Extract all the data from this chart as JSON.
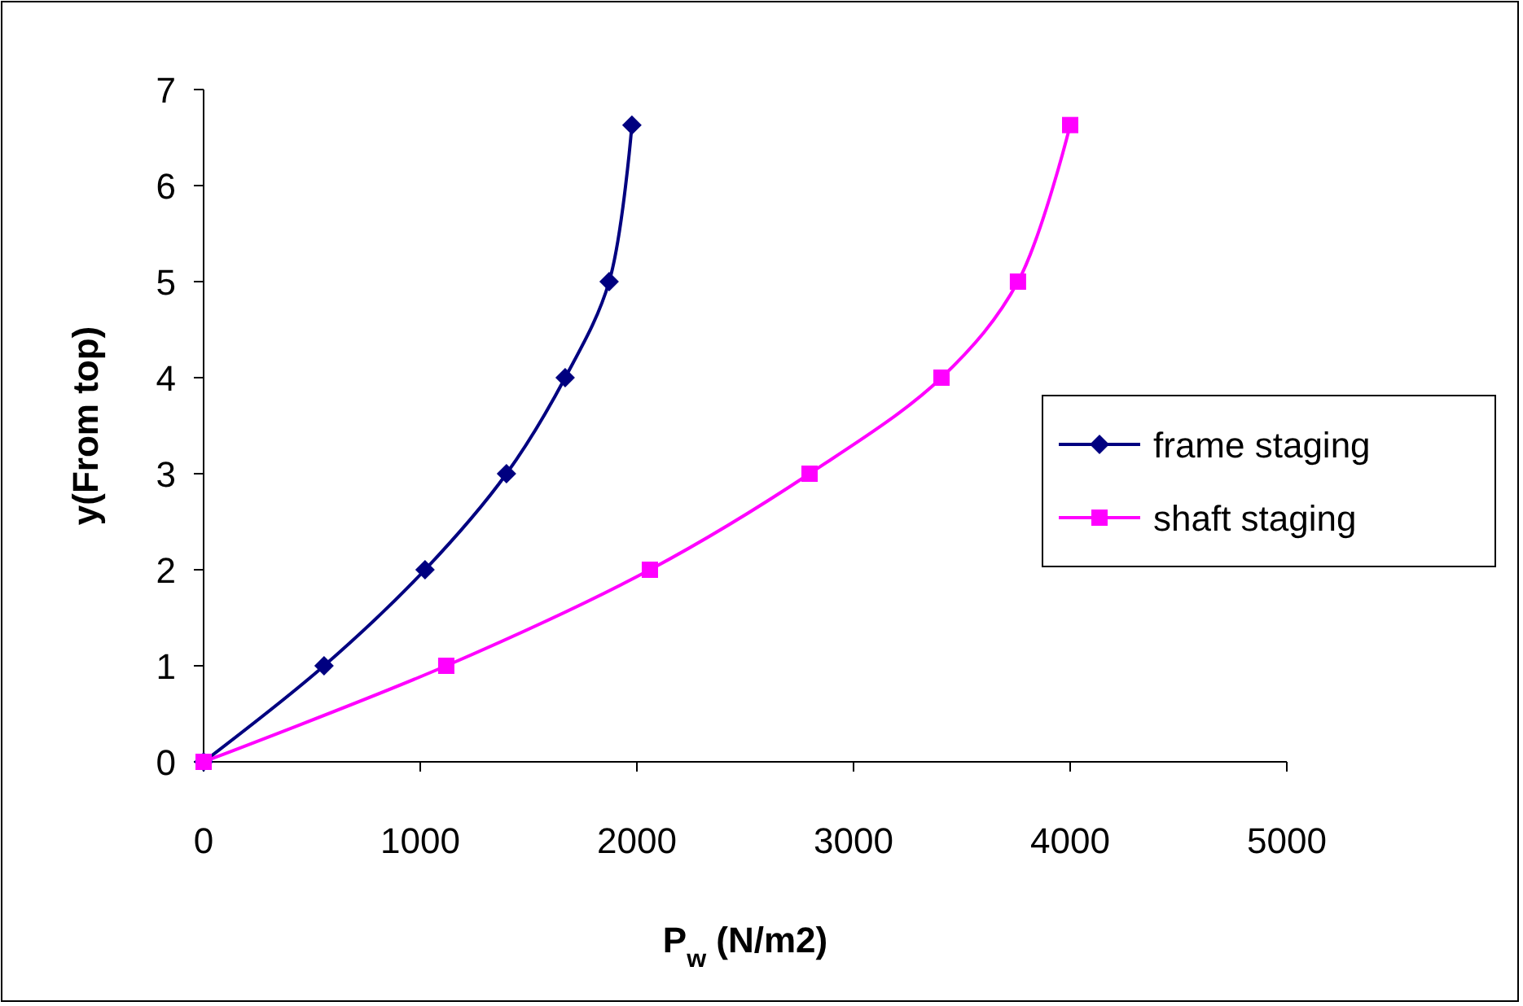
{
  "chart_data": {
    "type": "line",
    "xlabel": "P$_{w}$ (N/m2)",
    "ylabel": "y(From top)",
    "xlim": [
      0,
      5000
    ],
    "xticks": [
      0,
      1000,
      2000,
      3000,
      4000,
      5000
    ],
    "ylim": [
      0,
      7
    ],
    "yticks": [
      0,
      1,
      2,
      3,
      4,
      5,
      6,
      7
    ],
    "grid": false,
    "legend": "right",
    "line_style": "solid",
    "series": [
      {
        "name": "frame staging",
        "color": "#000080",
        "marker": "diamond",
        "x": [
          0,
          556,
          1022,
          1398,
          1669,
          1872,
          1977
        ],
        "values": [
          0,
          1,
          2,
          3,
          4,
          5,
          6.63
        ]
      },
      {
        "name": "shaft staging",
        "color": "#ff00ff",
        "marker": "square",
        "x": [
          0,
          1120,
          2060,
          2797,
          3406,
          3759,
          4000
        ],
        "values": [
          0,
          1,
          2,
          3,
          4,
          5,
          6.63
        ]
      }
    ]
  }
}
